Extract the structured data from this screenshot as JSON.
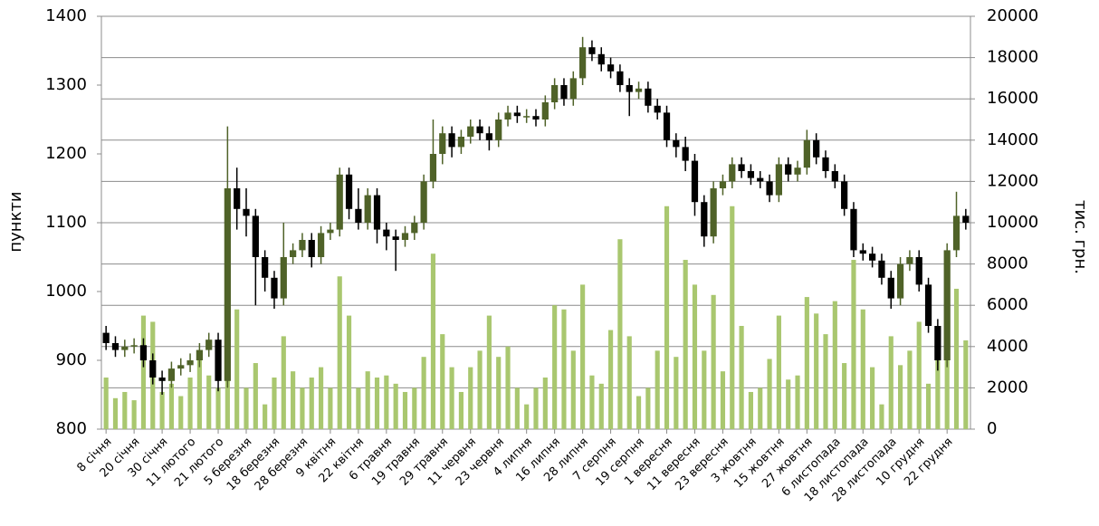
{
  "chart_data": {
    "type": "candlestick",
    "y_label": "пункти",
    "y2_label": "тис. грн.",
    "ylim": [
      800,
      1400
    ],
    "yticks": [
      800,
      900,
      1000,
      1100,
      1200,
      1300,
      1400
    ],
    "y2lim": [
      0,
      20000
    ],
    "y2ticks": [
      0,
      2000,
      4000,
      6000,
      8000,
      10000,
      12000,
      14000,
      16000,
      18000,
      20000
    ],
    "grid": true,
    "up_color": "#4f6228",
    "down_color": "#000000",
    "volume_color": "#a9c76f",
    "categories": [
      "8 січня",
      null,
      null,
      "20 січня",
      null,
      null,
      "30 січня",
      null,
      null,
      "11 лютого",
      null,
      null,
      "21 лютого",
      null,
      null,
      "5 березня",
      null,
      null,
      "18 березня",
      null,
      null,
      "28 березня",
      null,
      null,
      "9 квітня",
      null,
      null,
      "22 квітня",
      null,
      null,
      "6 травня",
      null,
      null,
      "19 травня",
      null,
      null,
      "29 травня",
      null,
      null,
      "11 червня",
      null,
      null,
      "23 червня",
      null,
      null,
      "4 липня",
      null,
      null,
      "16 липня",
      null,
      null,
      "28 липня",
      null,
      null,
      "7 серпня",
      null,
      null,
      "19 серпня",
      null,
      null,
      "1 вересня",
      null,
      null,
      "11 вересня",
      null,
      null,
      "23 вересня",
      null,
      null,
      "3 жовтня",
      null,
      null,
      "15 жовтня",
      null,
      null,
      "27 жовтня",
      null,
      null,
      "6 листопада",
      null,
      null,
      "18 листопада",
      null,
      null,
      "28 листопада",
      null,
      null,
      "10 грудня",
      null,
      null,
      "22 грудня",
      null,
      null
    ],
    "open": [
      940,
      925,
      915,
      920,
      922,
      900,
      875,
      870,
      888,
      893,
      900,
      915,
      930,
      870,
      1150,
      1120,
      1110,
      1050,
      1020,
      990,
      1050,
      1060,
      1075,
      1050,
      1085,
      1090,
      1170,
      1120,
      1100,
      1140,
      1090,
      1080,
      1075,
      1085,
      1100,
      1160,
      1200,
      1230,
      1210,
      1225,
      1240,
      1230,
      1220,
      1250,
      1260,
      1255,
      1255,
      1250,
      1275,
      1300,
      1280,
      1310,
      1355,
      1345,
      1330,
      1320,
      1300,
      1290,
      1295,
      1270,
      1260,
      1220,
      1210,
      1190,
      1130,
      1080,
      1150,
      1160,
      1185,
      1175,
      1165,
      1160,
      1140,
      1185,
      1170,
      1180,
      1220,
      1195,
      1175,
      1160,
      1120,
      1060,
      1055,
      1045,
      1020,
      990,
      1040,
      1050,
      1010,
      950,
      900,
      1060,
      1110
    ],
    "high": [
      950,
      935,
      930,
      932,
      932,
      910,
      885,
      898,
      903,
      910,
      925,
      940,
      940,
      1240,
      1180,
      1150,
      1120,
      1060,
      1030,
      1100,
      1070,
      1085,
      1085,
      1095,
      1100,
      1180,
      1180,
      1150,
      1150,
      1150,
      1100,
      1090,
      1095,
      1110,
      1170,
      1250,
      1240,
      1240,
      1235,
      1250,
      1250,
      1240,
      1260,
      1270,
      1270,
      1265,
      1265,
      1285,
      1310,
      1310,
      1320,
      1370,
      1365,
      1355,
      1340,
      1330,
      1310,
      1305,
      1305,
      1280,
      1270,
      1230,
      1225,
      1200,
      1140,
      1160,
      1170,
      1195,
      1195,
      1185,
      1175,
      1170,
      1195,
      1195,
      1190,
      1235,
      1230,
      1205,
      1185,
      1170,
      1130,
      1070,
      1065,
      1055,
      1030,
      1050,
      1060,
      1060,
      1020,
      960,
      1070,
      1145,
      1120
    ],
    "low": [
      915,
      905,
      905,
      910,
      890,
      865,
      850,
      860,
      878,
      883,
      890,
      905,
      855,
      860,
      1090,
      1080,
      980,
      1000,
      975,
      980,
      1040,
      1050,
      1035,
      1040,
      1075,
      1080,
      1105,
      1090,
      1090,
      1070,
      1060,
      1030,
      1065,
      1075,
      1090,
      1150,
      1185,
      1195,
      1200,
      1215,
      1220,
      1205,
      1210,
      1240,
      1245,
      1245,
      1240,
      1240,
      1265,
      1270,
      1270,
      1300,
      1335,
      1320,
      1310,
      1290,
      1255,
      1280,
      1260,
      1250,
      1210,
      1195,
      1175,
      1110,
      1065,
      1070,
      1140,
      1150,
      1165,
      1155,
      1150,
      1130,
      1130,
      1160,
      1160,
      1170,
      1185,
      1165,
      1150,
      1110,
      1050,
      1045,
      1035,
      1010,
      975,
      980,
      1030,
      1000,
      940,
      885,
      890,
      1050,
      1090
    ],
    "close": [
      925,
      915,
      920,
      922,
      900,
      875,
      870,
      888,
      893,
      900,
      915,
      930,
      870,
      1150,
      1120,
      1110,
      1050,
      1020,
      990,
      1050,
      1060,
      1075,
      1050,
      1085,
      1090,
      1170,
      1120,
      1100,
      1140,
      1090,
      1080,
      1075,
      1085,
      1100,
      1160,
      1200,
      1230,
      1210,
      1225,
      1240,
      1230,
      1220,
      1250,
      1260,
      1255,
      1255,
      1250,
      1275,
      1300,
      1280,
      1310,
      1355,
      1345,
      1330,
      1320,
      1300,
      1290,
      1295,
      1270,
      1260,
      1220,
      1210,
      1190,
      1130,
      1080,
      1150,
      1160,
      1185,
      1175,
      1165,
      1160,
      1140,
      1185,
      1170,
      1180,
      1220,
      1195,
      1175,
      1160,
      1120,
      1060,
      1055,
      1045,
      1020,
      990,
      1040,
      1050,
      1010,
      950,
      900,
      1060,
      1110,
      1100
    ],
    "volume": [
      2500,
      1500,
      1800,
      1400,
      5500,
      5200,
      1800,
      2200,
      1600,
      2500,
      3600,
      2600,
      2000,
      8700,
      5800,
      2000,
      3200,
      1200,
      2500,
      4500,
      2800,
      2000,
      2500,
      3000,
      2000,
      7400,
      5500,
      2000,
      2800,
      2500,
      2600,
      2200,
      1800,
      2000,
      3500,
      8500,
      4600,
      3000,
      1800,
      3000,
      3800,
      5500,
      3500,
      4000,
      2000,
      1200,
      2000,
      2500,
      6000,
      5800,
      3800,
      7000,
      2600,
      2200,
      4800,
      9200,
      4500,
      1600,
      2000,
      3800,
      10800,
      3500,
      8200,
      7000,
      3800,
      6500,
      2800,
      10800,
      5000,
      1800,
      2000,
      3400,
      5500,
      2400,
      2600,
      6400,
      5600,
      4600,
      6200,
      3200,
      8200,
      5800,
      3000,
      1200,
      4500,
      3100,
      3800,
      5200,
      2200,
      3500,
      4200,
      6800,
      4300
    ]
  }
}
